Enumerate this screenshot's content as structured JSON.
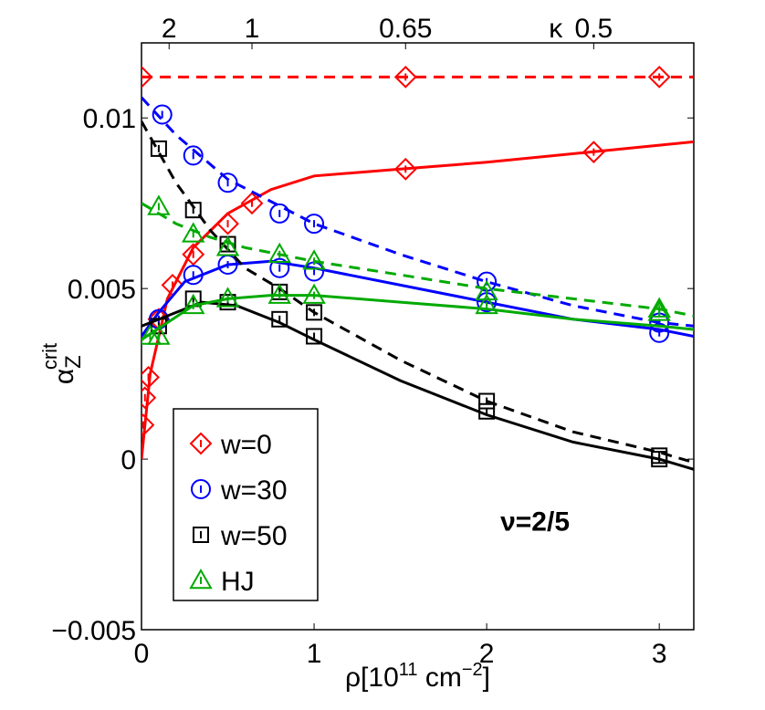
{
  "chart_data": {
    "type": "line",
    "title": "",
    "xlabel": "ρ[10",
    "xlabel_sup": "11",
    "xlabel_rest": " cm",
    "xlabel_sup2": "−2",
    "xlabel_end": "]",
    "ylabel": "α",
    "ylabel_sub": "Z",
    "ylabel_sup": "crit",
    "xlim": [
      0,
      3.2
    ],
    "ylim": [
      -0.005,
      0.0122
    ],
    "x_ticks": [
      {
        "value": 0,
        "label": "0"
      },
      {
        "value": 1,
        "label": "1"
      },
      {
        "value": 2,
        "label": "2"
      },
      {
        "value": 3,
        "label": "3"
      }
    ],
    "y_ticks": [
      {
        "value": -0.005,
        "label": "−0.005"
      },
      {
        "value": 0,
        "label": "0"
      },
      {
        "value": 0.005,
        "label": "0.005"
      },
      {
        "value": 0.01,
        "label": "0.01"
      }
    ],
    "top_axis": {
      "label": "κ",
      "label_x": 2.4,
      "ticks": [
        {
          "value": 0.16,
          "label": "2"
        },
        {
          "value": 0.64,
          "label": "1"
        },
        {
          "value": 1.53,
          "label": "0.65"
        },
        {
          "value": 2.62,
          "label": "0.5"
        }
      ]
    },
    "annotation": {
      "text": "ν=2/5",
      "x": 2.28,
      "y": -0.0021
    },
    "legend": {
      "placement": "bottom-left",
      "entries": [
        {
          "label": "w=0",
          "marker": "diamond",
          "color": "#ff0000"
        },
        {
          "label": "w=30",
          "marker": "circle",
          "color": "#0000ff"
        },
        {
          "label": "w=50",
          "marker": "square",
          "color": "#000000"
        },
        {
          "label": "HJ",
          "marker": "triangle",
          "color": "#00aa00"
        }
      ]
    },
    "series": [
      {
        "name": "w=0",
        "color": "#ff0000",
        "marker": "diamond",
        "points_solid": [
          [
            0.01,
            0.001
          ],
          [
            0.02,
            0.0018
          ],
          [
            0.04,
            0.0024
          ],
          [
            0.1,
            0.0041
          ],
          [
            0.18,
            0.0051
          ],
          [
            0.3,
            0.006
          ],
          [
            0.5,
            0.0069
          ],
          [
            0.64,
            0.0075
          ],
          [
            1.53,
            0.0085
          ],
          [
            2.62,
            0.009
          ]
        ],
        "points_dashed": [
          [
            0.0,
            0.0112
          ],
          [
            1.53,
            0.0112
          ],
          [
            3.0,
            0.0112
          ]
        ],
        "line_solid": [
          [
            0.0,
            0.0
          ],
          [
            0.05,
            0.0025
          ],
          [
            0.15,
            0.0047
          ],
          [
            0.3,
            0.0062
          ],
          [
            0.5,
            0.0072
          ],
          [
            0.75,
            0.0079
          ],
          [
            1.0,
            0.0083
          ],
          [
            1.5,
            0.0085
          ],
          [
            2.0,
            0.0087
          ],
          [
            2.6,
            0.009
          ],
          [
            3.2,
            0.0093
          ]
        ],
        "line_dashed": [
          [
            0.0,
            0.0112
          ],
          [
            3.2,
            0.0112
          ]
        ]
      },
      {
        "name": "w=30",
        "color": "#0000ff",
        "marker": "circle",
        "points_solid": [
          [
            0.1,
            0.0041
          ],
          [
            0.3,
            0.0054
          ],
          [
            0.5,
            0.0057
          ],
          [
            0.8,
            0.0056
          ],
          [
            1.0,
            0.0055
          ],
          [
            2.0,
            0.0046
          ],
          [
            3.0,
            0.0037
          ]
        ],
        "points_dashed": [
          [
            0.12,
            0.0101
          ],
          [
            0.3,
            0.0089
          ],
          [
            0.5,
            0.0081
          ],
          [
            0.8,
            0.0072
          ],
          [
            1.0,
            0.0069
          ],
          [
            2.0,
            0.0052
          ],
          [
            3.0,
            0.004
          ]
        ],
        "line_solid": [
          [
            0.0,
            0.0036
          ],
          [
            0.1,
            0.0043
          ],
          [
            0.25,
            0.0052
          ],
          [
            0.5,
            0.0057
          ],
          [
            0.75,
            0.0058
          ],
          [
            1.0,
            0.0056
          ],
          [
            1.5,
            0.0051
          ],
          [
            2.0,
            0.0046
          ],
          [
            2.5,
            0.0041
          ],
          [
            3.0,
            0.0038
          ],
          [
            3.2,
            0.0036
          ]
        ],
        "line_dashed": [
          [
            0.0,
            0.0106
          ],
          [
            0.2,
            0.0095
          ],
          [
            0.5,
            0.0082
          ],
          [
            1.0,
            0.0069
          ],
          [
            1.5,
            0.006
          ],
          [
            2.0,
            0.0052
          ],
          [
            2.5,
            0.0045
          ],
          [
            3.0,
            0.004
          ],
          [
            3.2,
            0.0039
          ]
        ]
      },
      {
        "name": "w=50",
        "color": "#000000",
        "marker": "square",
        "points_solid": [
          [
            0.1,
            0.0039
          ],
          [
            0.3,
            0.0047
          ],
          [
            0.5,
            0.0046
          ],
          [
            0.8,
            0.0041
          ],
          [
            1.0,
            0.0036
          ],
          [
            2.0,
            0.0014
          ],
          [
            3.0,
            0.0
          ]
        ],
        "points_dashed": [
          [
            0.1,
            0.0091
          ],
          [
            0.3,
            0.0073
          ],
          [
            0.5,
            0.0063
          ],
          [
            0.8,
            0.0049
          ],
          [
            1.0,
            0.0043
          ],
          [
            2.0,
            0.0017
          ],
          [
            3.0,
            0.0001
          ]
        ],
        "line_solid": [
          [
            0.0,
            0.0039
          ],
          [
            0.15,
            0.0042
          ],
          [
            0.35,
            0.0046
          ],
          [
            0.55,
            0.0045
          ],
          [
            0.8,
            0.004
          ],
          [
            1.0,
            0.0035
          ],
          [
            1.5,
            0.0023
          ],
          [
            2.0,
            0.0013
          ],
          [
            2.5,
            0.0005
          ],
          [
            3.0,
            0.0
          ],
          [
            3.2,
            -0.0003
          ]
        ],
        "line_dashed": [
          [
            0.0,
            0.0099
          ],
          [
            0.2,
            0.0081
          ],
          [
            0.4,
            0.0067
          ],
          [
            0.6,
            0.0056
          ],
          [
            0.8,
            0.005
          ],
          [
            1.0,
            0.0043
          ],
          [
            1.5,
            0.0029
          ],
          [
            2.0,
            0.0017
          ],
          [
            2.5,
            0.0008
          ],
          [
            3.0,
            0.0002
          ],
          [
            3.2,
            -0.0001
          ]
        ]
      },
      {
        "name": "HJ",
        "color": "#00aa00",
        "marker": "triangle",
        "points_solid": [
          [
            0.05,
            0.0036
          ],
          [
            0.1,
            0.0036
          ],
          [
            0.3,
            0.0045
          ],
          [
            0.5,
            0.0047
          ],
          [
            0.8,
            0.0048
          ],
          [
            1.0,
            0.0048
          ],
          [
            2.0,
            0.0045
          ],
          [
            3.0,
            0.0043
          ]
        ],
        "points_dashed": [
          [
            0.1,
            0.0074
          ],
          [
            0.3,
            0.0066
          ],
          [
            0.5,
            0.0062
          ],
          [
            0.8,
            0.006
          ],
          [
            1.0,
            0.0058
          ],
          [
            2.0,
            0.0049
          ],
          [
            3.0,
            0.0044
          ]
        ],
        "line_solid": [
          [
            0.0,
            0.0035
          ],
          [
            0.15,
            0.004
          ],
          [
            0.3,
            0.0045
          ],
          [
            0.5,
            0.0047
          ],
          [
            0.75,
            0.0048
          ],
          [
            1.0,
            0.0048
          ],
          [
            1.5,
            0.0046
          ],
          [
            2.0,
            0.0044
          ],
          [
            2.5,
            0.0041
          ],
          [
            3.0,
            0.0039
          ],
          [
            3.2,
            0.0038
          ]
        ],
        "line_dashed": [
          [
            0.0,
            0.0075
          ],
          [
            0.2,
            0.0069
          ],
          [
            0.4,
            0.0065
          ],
          [
            0.6,
            0.0062
          ],
          [
            0.8,
            0.006
          ],
          [
            1.0,
            0.0058
          ],
          [
            1.5,
            0.0054
          ],
          [
            2.0,
            0.005
          ],
          [
            2.5,
            0.0047
          ],
          [
            3.0,
            0.0044
          ],
          [
            3.2,
            0.0042
          ]
        ]
      }
    ]
  }
}
